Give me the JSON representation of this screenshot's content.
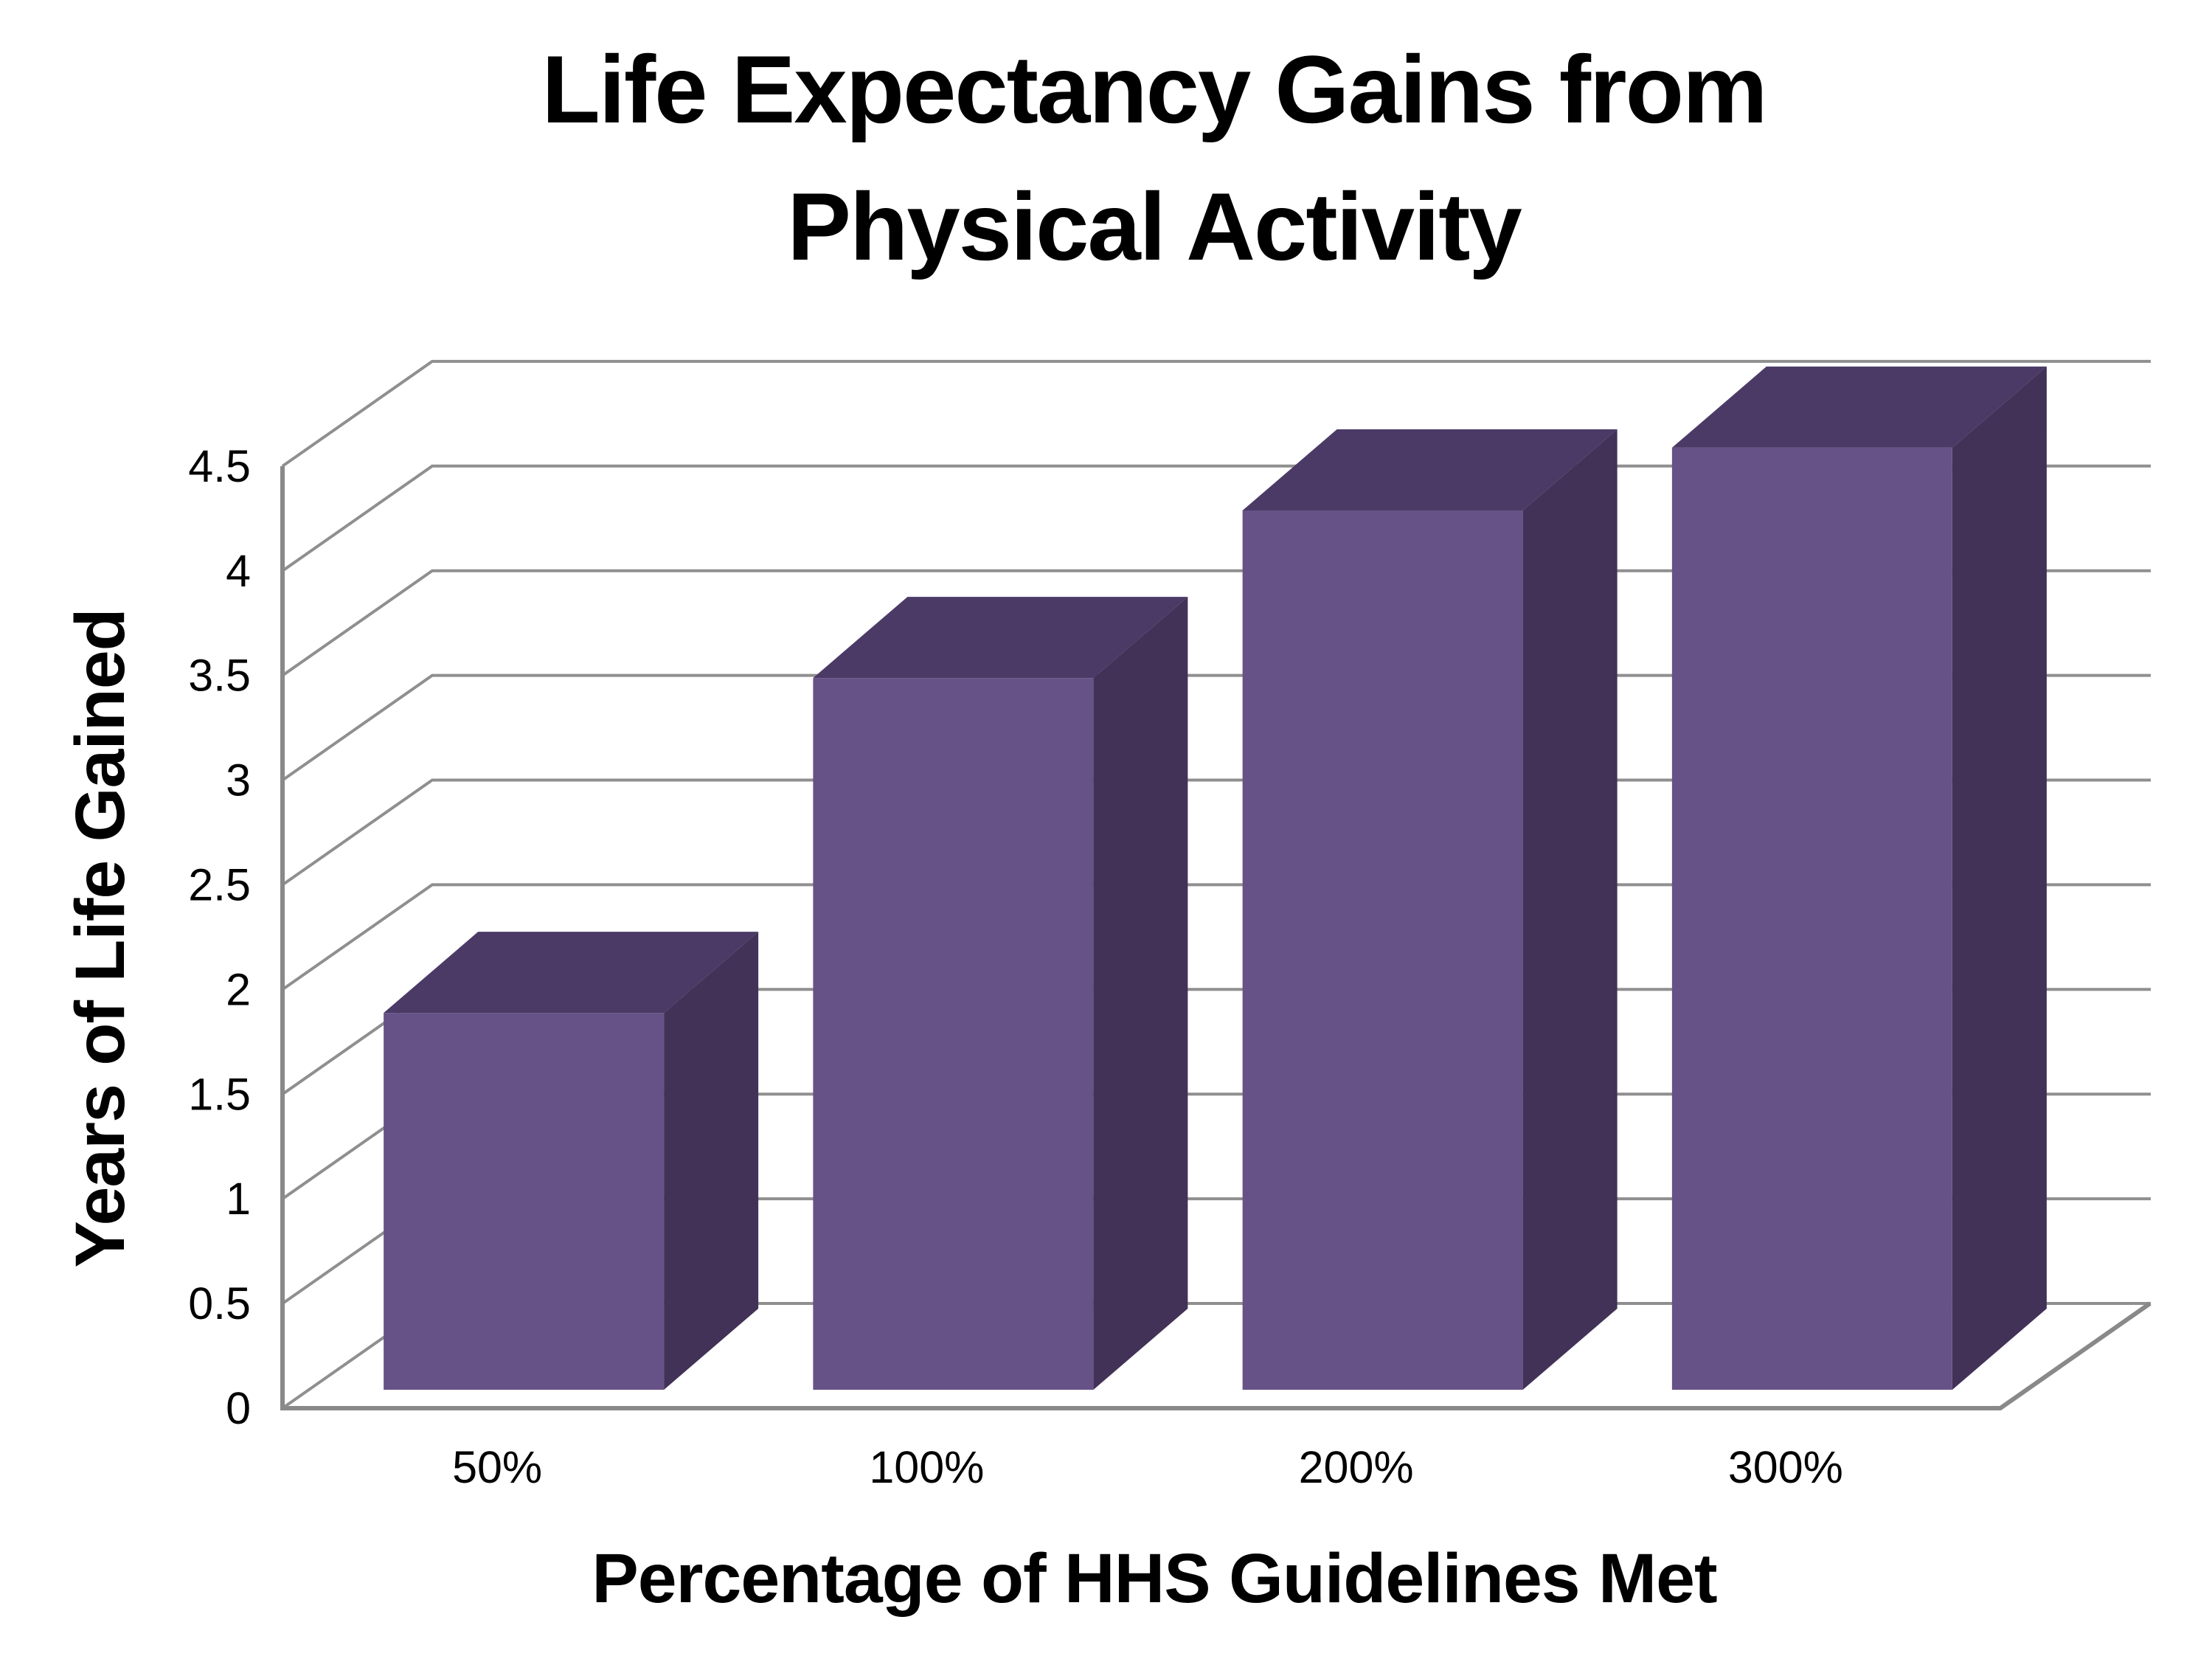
{
  "title_lines": [
    "Life Expectancy Gains from",
    "Physical Activity"
  ],
  "colors": {
    "background": "#FFFFFF",
    "text": "#000000",
    "bar_front": "#675287",
    "bar_top": "#4B3A66",
    "bar_side": "#423257",
    "gridline": "#8F8F8F",
    "axis_line": "#898989"
  },
  "chart_data": {
    "type": "bar",
    "style": "3d-column",
    "title": "Life Expectancy Gains from Physical Activity",
    "categories": [
      "50%",
      "100%",
      "200%",
      "300%"
    ],
    "values": [
      1.8,
      3.4,
      4.2,
      4.5
    ],
    "xlabel": "Percentage of HHS Guidelines Met",
    "ylabel": "Years of Life Gained",
    "ylim": [
      0,
      4.5
    ],
    "ytick_step": 0.5,
    "yticks": [
      0,
      0.5,
      1,
      1.5,
      2,
      2.5,
      3,
      3.5,
      4,
      4.5
    ],
    "ytick_labels": [
      "0",
      "0.5",
      "1",
      "1.5",
      "2",
      "2.5",
      "3",
      "3.5",
      "4",
      "4.5"
    ],
    "grid": true,
    "legend": false
  }
}
